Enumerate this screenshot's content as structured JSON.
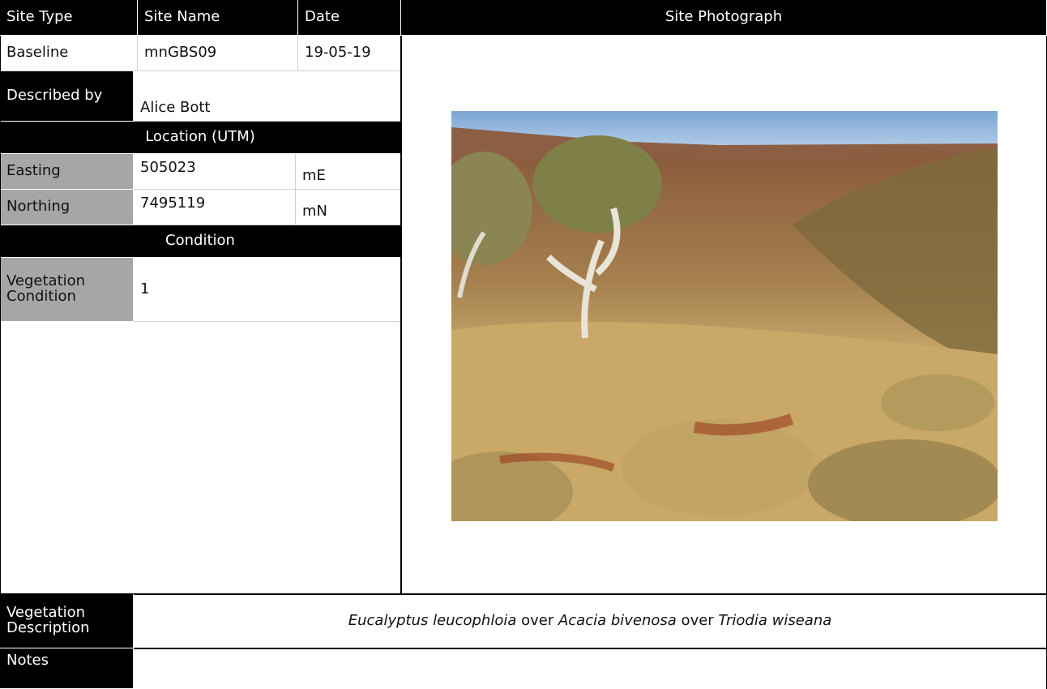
{
  "header": {
    "columns": [
      "Site Type",
      "Site Name",
      "Date",
      "Site Photograph"
    ]
  },
  "site": {
    "type": "Baseline",
    "name": "mnGBS09",
    "date": "19-05-19"
  },
  "described_by": {
    "label": "Described by",
    "value": "Alice Bott"
  },
  "location": {
    "title": "Location (UTM)",
    "rows": [
      {
        "label": "Easting",
        "value": "505023",
        "unit": "mE"
      },
      {
        "label": "Northing",
        "value": "7495119",
        "unit": "mN"
      }
    ]
  },
  "condition": {
    "title": "Condition",
    "label": "Vegetation Condition",
    "value": "1"
  },
  "vegetation_description": {
    "label": "Vegetation Description",
    "segments": [
      {
        "text": "Eucalyptus leucophloia",
        "italic": true
      },
      {
        "text": " over ",
        "italic": false
      },
      {
        "text": "Acacia bivenosa",
        "italic": true
      },
      {
        "text": " over ",
        "italic": false
      },
      {
        "text": "Triodia wiseana",
        "italic": true
      }
    ]
  },
  "notes": {
    "label": "Notes"
  }
}
